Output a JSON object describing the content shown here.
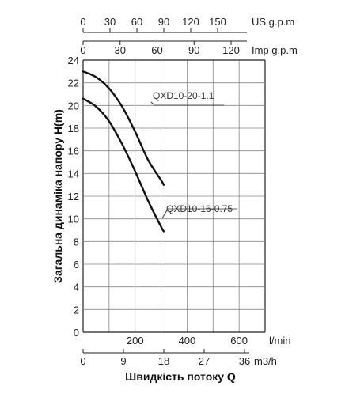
{
  "chart_data": {
    "type": "line",
    "title": "",
    "xlabel": "Швидкість потоку Q",
    "ylabel": "Загальна динаміка напору H(m)",
    "ylim": [
      0,
      24
    ],
    "yticks": [
      "0",
      "2",
      "4",
      "6",
      "8",
      "10",
      "12",
      "14",
      "16",
      "18",
      "20",
      "22",
      "24"
    ],
    "grid": true,
    "x_axes": [
      {
        "name": "us_gpm",
        "unit": "US g.p.m",
        "ticks": [
          "0",
          "30",
          "60",
          "90",
          "120",
          "150"
        ]
      },
      {
        "name": "imp_gpm",
        "unit": "Imp g.p.m",
        "ticks": [
          "0",
          "30",
          "60",
          "90",
          "120"
        ]
      },
      {
        "name": "l_min",
        "unit": "l/min",
        "ticks": [
          "200",
          "400",
          "600"
        ]
      },
      {
        "name": "m3_h",
        "unit": "m3/h",
        "ticks": [
          "0",
          "9",
          "18",
          "27",
          "36"
        ]
      }
    ],
    "x_unit": "l/min",
    "xlim": [
      0,
      700
    ],
    "series": [
      {
        "name": "QXD10-20-1.1",
        "x": [
          0,
          50,
          100,
          150,
          200,
          250,
          300,
          310
        ],
        "y": [
          23.0,
          22.5,
          21.5,
          19.9,
          17.7,
          15.2,
          13.4,
          13.0
        ]
      },
      {
        "name": "QXD10-16-0.75",
        "x": [
          0,
          50,
          100,
          150,
          200,
          250,
          300,
          310
        ],
        "y": [
          20.6,
          19.9,
          18.6,
          16.6,
          14.2,
          11.6,
          9.3,
          8.9
        ]
      }
    ]
  }
}
